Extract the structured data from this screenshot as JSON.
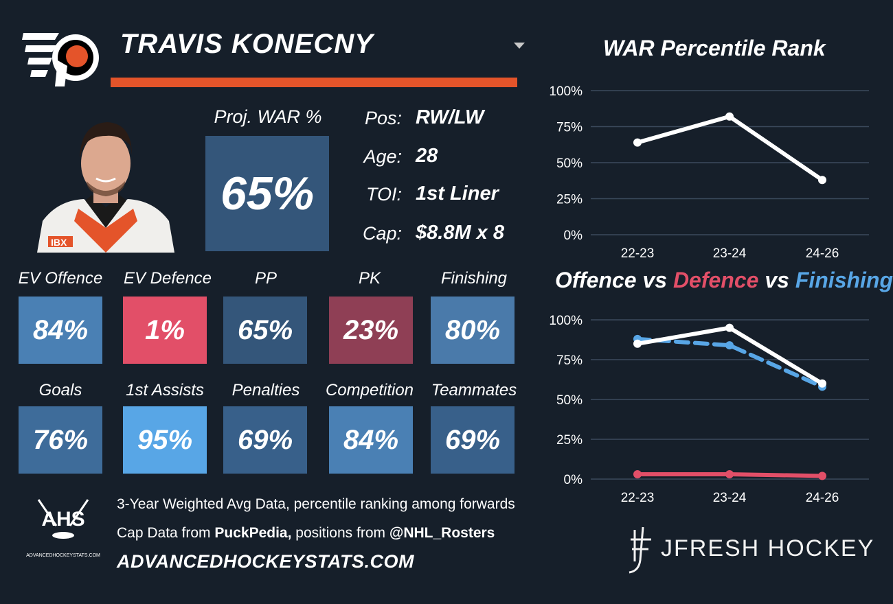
{
  "player": {
    "name": "TRAVIS KONECNY",
    "proj_war_label": "Proj. WAR %",
    "proj_war_value": "65%"
  },
  "info": [
    {
      "label": "Pos:",
      "value": "RW/LW"
    },
    {
      "label": "Age:",
      "value": "28"
    },
    {
      "label": "TOI:",
      "value": "1st Liner"
    },
    {
      "label": "Cap:",
      "value": "$8.8M x 8"
    }
  ],
  "stats_row1": [
    {
      "label": "EV Offence",
      "value": "84%",
      "color": "#4a80b4"
    },
    {
      "label": "EV Defence",
      "value": "1%",
      "color": "#e24f68"
    },
    {
      "label": "PP",
      "value": "65%",
      "color": "#34567a"
    },
    {
      "label": "PK",
      "value": "23%",
      "color": "#8f3f55"
    },
    {
      "label": "Finishing",
      "value": "80%",
      "color": "#4a7aaa"
    }
  ],
  "stats_row2": [
    {
      "label": "Goals",
      "value": "76%",
      "color": "#3e6c9a"
    },
    {
      "label": "1st Assists",
      "value": "95%",
      "color": "#58a6e6"
    },
    {
      "label": "Penalties",
      "value": "69%",
      "color": "#38608a"
    },
    {
      "label": "Competition",
      "value": "84%",
      "color": "#4a80b4"
    },
    {
      "label": "Teammates",
      "value": "69%",
      "color": "#38608a"
    }
  ],
  "footer": {
    "line1": "3-Year Weighted Avg Data, percentile ranking among forwards",
    "line2_prefix": "Cap Data from ",
    "line2_bold1": "PuckPedia,",
    "line2_mid": " positions from ",
    "line2_bold2": "@NHL_Rosters",
    "site": "ADVANCEDHOCKEYSTATS.COM",
    "ahs_logo": "AHS",
    "ahs_logo_sub": "ADVANCEDHOCKEYSTATS.COM",
    "brand": "JFRESH HOCKEY"
  },
  "chart_data": [
    {
      "type": "line",
      "title": "WAR Percentile Rank",
      "categories": [
        "22-23",
        "23-24",
        "24-26"
      ],
      "series": [
        {
          "values": [
            64,
            82,
            38
          ],
          "color": "#ffffff",
          "dashed": false
        }
      ],
      "ylim": [
        0,
        100
      ],
      "yticks": [
        "0%",
        "25%",
        "50%",
        "75%",
        "100%"
      ],
      "grid": true
    },
    {
      "type": "line",
      "title_parts": [
        {
          "text": "Offence",
          "color": "#ffffff"
        },
        {
          "text": " vs ",
          "color": "#ffffff"
        },
        {
          "text": "Defence",
          "color": "#e24f68"
        },
        {
          "text": " vs ",
          "color": "#ffffff"
        },
        {
          "text": "Finishing",
          "color": "#58a6e6"
        }
      ],
      "categories": [
        "22-23",
        "23-24",
        "24-26"
      ],
      "series": [
        {
          "name": "Finishing",
          "values": [
            88,
            84,
            58
          ],
          "color": "#58a6e6",
          "dashed": true
        },
        {
          "name": "Offence",
          "values": [
            85,
            95,
            60
          ],
          "color": "#ffffff",
          "dashed": false
        },
        {
          "name": "Defence",
          "values": [
            3,
            3,
            2
          ],
          "color": "#e24f68",
          "dashed": false
        }
      ],
      "ylim": [
        0,
        100
      ],
      "yticks": [
        "0%",
        "25%",
        "50%",
        "75%",
        "100%"
      ],
      "grid": true
    }
  ],
  "icons": [
    "flyers-logo",
    "player-photo",
    "ahs-logo",
    "jfresh-logo-icon",
    "chevron-down-icon"
  ]
}
